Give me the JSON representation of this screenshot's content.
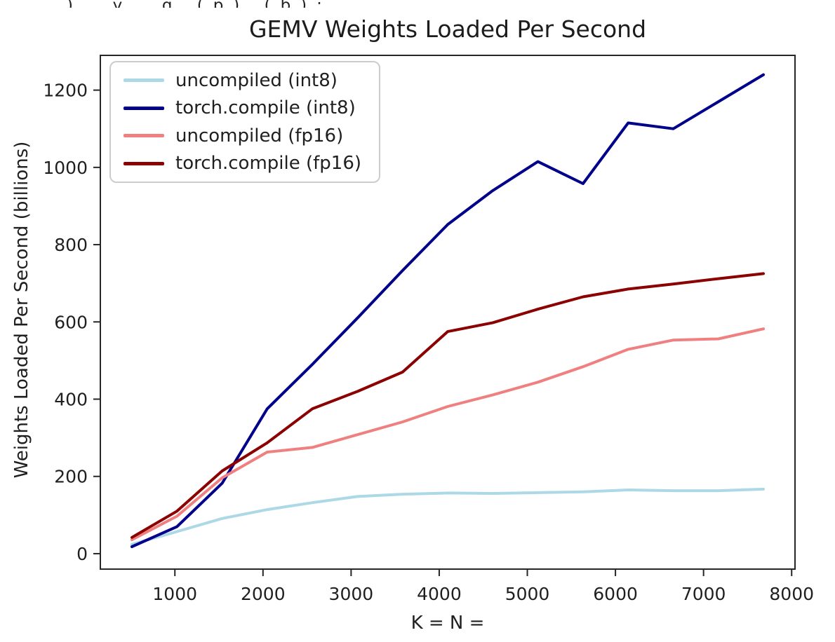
{
  "top_clipped_text": "), y, g (p) (b):",
  "chart_data": {
    "type": "line",
    "title": "GEMV Weights Loaded Per Second",
    "xlabel": "K = N =",
    "ylabel": "Weights Loaded Per Second (billions)",
    "x": [
      512,
      1024,
      1536,
      2048,
      2560,
      3072,
      3584,
      4096,
      4608,
      5120,
      5632,
      6144,
      6656,
      7168,
      7680
    ],
    "series": [
      {
        "label": "uncompiled (int8)",
        "color": "#ADD8E6",
        "values": [
          24,
          57,
          91,
          114,
          132,
          148,
          154,
          157,
          156,
          158,
          160,
          165,
          163,
          163,
          167
        ]
      },
      {
        "label": "torch.compile (int8)",
        "color": "#00008B",
        "values": [
          18,
          70,
          182,
          375,
          490,
          610,
          733,
          852,
          940,
          1015,
          958,
          1115,
          1100,
          1170,
          1240
        ]
      },
      {
        "label": "uncompiled (fp16)",
        "color": "#F08080",
        "values": [
          36,
          97,
          196,
          263,
          275,
          308,
          341,
          381,
          411,
          444,
          484,
          529,
          553,
          556,
          582
        ]
      },
      {
        "label": "torch.compile (fp16)",
        "color": "#8B0000",
        "values": [
          42,
          110,
          214,
          287,
          375,
          420,
          470,
          575,
          598,
          633,
          665,
          685,
          698,
          712,
          725
        ]
      }
    ],
    "xlim": [
      154,
      8038
    ],
    "ylim": [
      -40,
      1290
    ],
    "x_ticks": [
      1000,
      2000,
      3000,
      4000,
      5000,
      6000,
      7000,
      8000
    ],
    "y_ticks": [
      0,
      200,
      400,
      600,
      800,
      1000,
      1200
    ],
    "grid": false,
    "legend_position": "upper left",
    "axis_color": "#262626",
    "tick_label_color": "#1f1f1f",
    "line_width": 4
  }
}
